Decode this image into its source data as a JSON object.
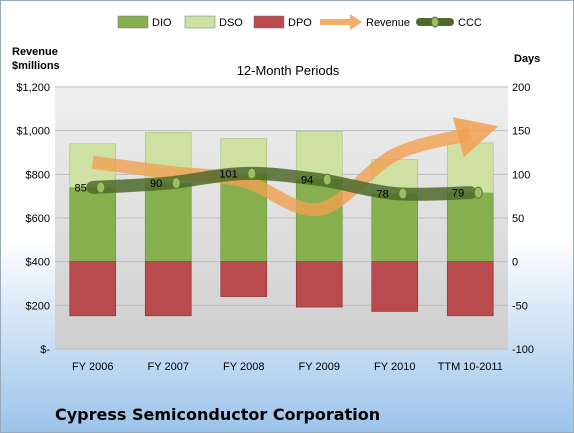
{
  "company": "Cypress Semiconductor Corporation",
  "chart_data": {
    "type": "bar",
    "subtitle": "12-Month Periods",
    "categories": [
      "FY 2006",
      "FY 2007",
      "FY 2008",
      "FY 2009",
      "FY 2010",
      "TTM 10-2011"
    ],
    "left_axis": {
      "title_line1": "Revenue",
      "title_line2": "$millions",
      "ticks": [
        "$-",
        "$200",
        "$400",
        "$600",
        "$800",
        "$1,000",
        "$1,200"
      ],
      "ylim": [
        0,
        1200
      ]
    },
    "right_axis": {
      "title": "Days",
      "ticks": [
        "-100",
        "-50",
        "0",
        "50",
        "100",
        "150",
        "200"
      ],
      "ylim": [
        -100,
        200
      ]
    },
    "series": [
      {
        "name": "DIO",
        "axis": "days",
        "color": "#86b04e",
        "values": [
          85,
          90,
          101,
          94,
          78,
          79
        ]
      },
      {
        "name": "DSO",
        "axis": "days",
        "color": "#cfe0a3",
        "values": [
          50,
          58,
          40,
          55,
          39,
          57
        ]
      },
      {
        "name": "DPO",
        "axis": "days",
        "color": "#b94a4d",
        "values": [
          -62,
          -62,
          -40,
          -52,
          -57,
          -62
        ]
      },
      {
        "name": "Revenue",
        "axis": "money",
        "color": "#f0a050",
        "values": [
          855,
          810,
          770,
          640,
          890,
          985
        ]
      },
      {
        "name": "CCC",
        "axis": "days",
        "color": "#4d6a2c",
        "values": [
          85,
          90,
          101,
          94,
          78,
          79
        ]
      }
    ],
    "ccc_labels": [
      "85",
      "90",
      "101",
      "94",
      "78",
      "79"
    ]
  }
}
